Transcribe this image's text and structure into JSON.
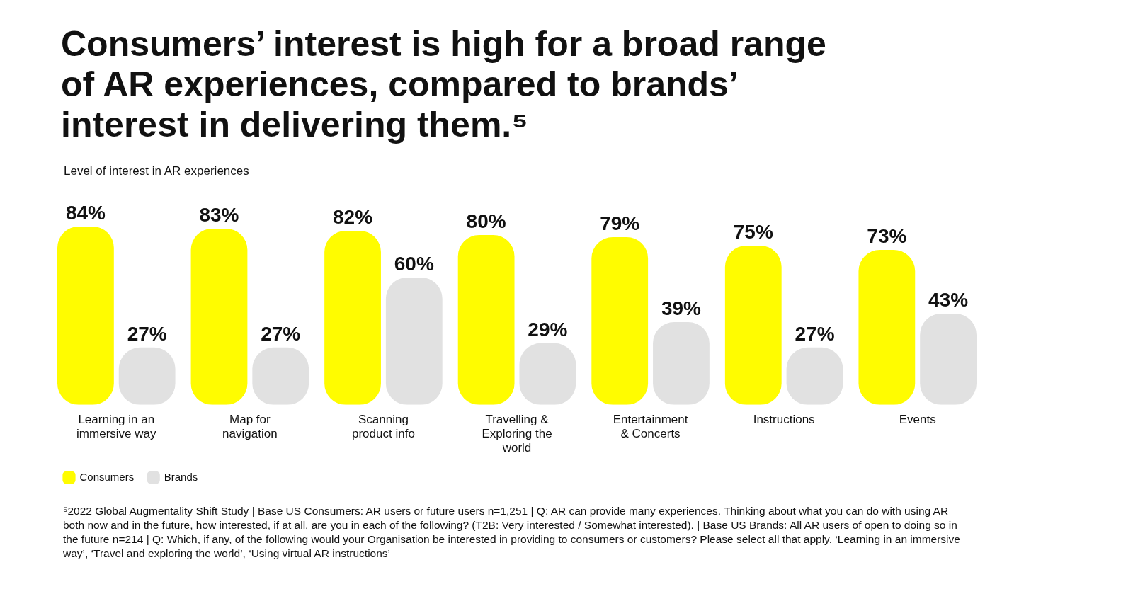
{
  "chart_data": {
    "type": "bar",
    "title": "Consumers’ interest is high for a broad range of AR experiences, compared to brands’ interest in delivering them.⁵",
    "subtitle": "Level of interest in AR experiences",
    "categories": [
      "Learning in an immersive way",
      "Map for navigation",
      "Scanning product info",
      "Travelling & Exploring the world",
      "Entertainment & Concerts",
      "Instructions",
      "Events"
    ],
    "tick_labels": "x",
    "series": [
      {
        "name": "Consumers",
        "color": "#fffc00",
        "values": [
          84,
          83,
          82,
          80,
          79,
          75,
          73
        ],
        "value_labels": [
          "84%",
          "83%",
          "82%",
          "80%",
          "79%",
          "75%",
          "73%"
        ]
      },
      {
        "name": "Brands",
        "color": "#e1e1e1",
        "values": [
          27,
          27,
          60,
          29,
          39,
          27,
          43
        ],
        "value_labels": [
          "27%",
          "27%",
          "60%",
          "29%",
          "39%",
          "27%",
          "43%"
        ]
      }
    ],
    "legend": "bottom left",
    "annotations": [
      "⁵2022 Global Augmentality Shift Study | Base US Consumers: AR users or future users n=1,251 | Q: AR can provide many experiences. Thinking about what you can do with using AR both now and in the future, how interested, if at all, are you in each of the following? (T2B: Very interested / Somewhat interested). | Base US Brands: All AR users of open to doing so in the future n=214 | Q: Which, if any, of the following would your Organisation be interested in providing to consumers or customers? Please select all that apply. ‘Learning in an immersive way’, ‘Travel and exploring the world’, ‘Using virtual AR instructions’"
    ]
  }
}
